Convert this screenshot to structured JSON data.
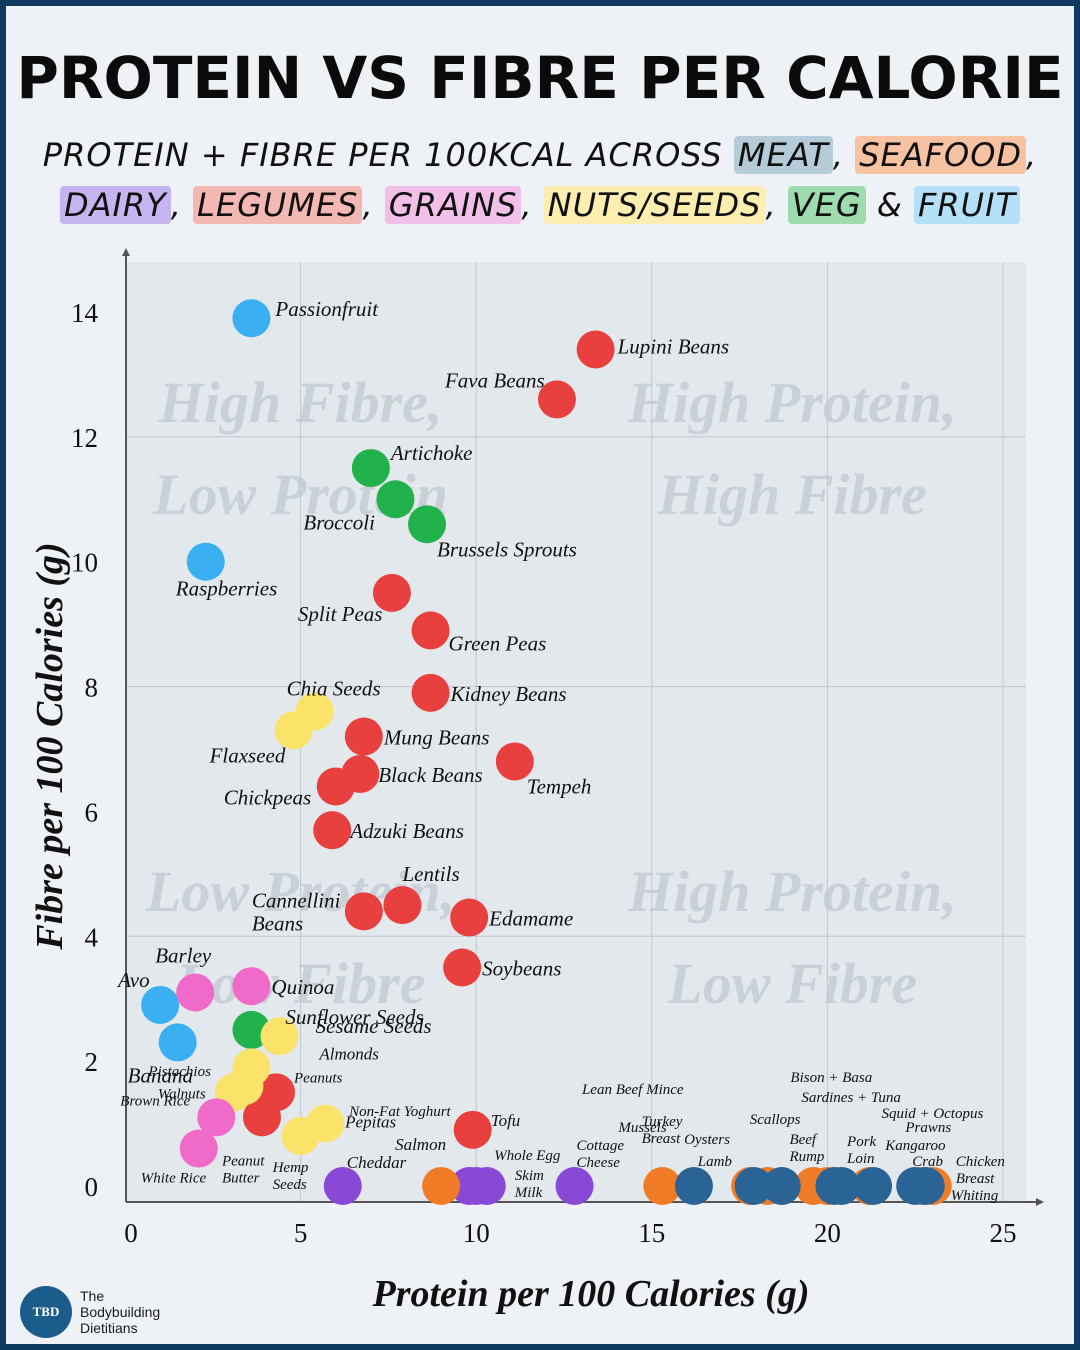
{
  "title": "PROTEIN VS FIBRE PER CALORIE",
  "subtitle": {
    "lead": "PROTEIN + FIBRE PER 100KCAL ACROSS",
    "cat_meat": "MEAT",
    "cat_seafood": "SEAFOOD",
    "cat_dairy": "DAIRY",
    "cat_legumes": "LEGUMES",
    "cat_grains": "GRAINS",
    "cat_nuts": "NUTS/SEEDS",
    "cat_veg": "VEG",
    "cat_fruit": "FRUIT",
    "comma": ",",
    "amp": "&"
  },
  "brand": {
    "logo_text": "TBD",
    "line1": "The",
    "line2": "Bodybuilding",
    "line3": "Dietitians"
  },
  "colors": {
    "meat": "#2a6496",
    "seafood": "#f07c28",
    "dairy": "#8a48d6",
    "legumes": "#e8403e",
    "grains": "#f06aca",
    "nuts": "#fbe36a",
    "veg": "#22b24c",
    "fruit": "#3ab0f2",
    "meat_hl": "#b6cbd8",
    "seafood_hl": "#f6c2a2",
    "dairy_hl": "#c4b4ef",
    "legumes_hl": "#f4b8b4",
    "grains_hl": "#f2bfe9",
    "nuts_hl": "#fbeeb0",
    "veg_hl": "#9edcb0",
    "fruit_hl": "#b4e0f8"
  },
  "chart_data": {
    "type": "scatter",
    "xlabel": "Protein per 100 Calories (g)",
    "ylabel": "Fibre per 100 Calories (g)",
    "xlim": [
      0,
      25
    ],
    "ylim": [
      0,
      14
    ],
    "xticks": [
      0,
      5,
      10,
      15,
      20,
      25
    ],
    "yticks": [
      2,
      4,
      6,
      8,
      10,
      12,
      14
    ],
    "ytick_zero": "0",
    "grid": true,
    "quadrant_labels": {
      "top_left": [
        "High Fibre,",
        "Low Protein"
      ],
      "top_right": [
        "High Protein,",
        "High Fibre"
      ],
      "bottom_left": [
        "Low Protein,",
        "Low Fibre"
      ],
      "bottom_right": [
        "High Protein,",
        "Low Fibre"
      ]
    },
    "points": [
      {
        "label": "Passionfruit",
        "category": "fruit",
        "x": 3.6,
        "y": 13.9
      },
      {
        "label": "Raspberries",
        "category": "fruit",
        "x": 2.3,
        "y": 10.0
      },
      {
        "label": "Avo",
        "category": "fruit",
        "x": 1.0,
        "y": 2.9
      },
      {
        "label": "Banana",
        "category": "fruit",
        "x": 1.5,
        "y": 2.3
      },
      {
        "label": "Lupini Beans",
        "category": "legumes",
        "x": 13.4,
        "y": 13.4
      },
      {
        "label": "Fava Beans",
        "category": "legumes",
        "x": 12.3,
        "y": 12.6
      },
      {
        "label": "Split Peas",
        "category": "legumes",
        "x": 7.6,
        "y": 9.5
      },
      {
        "label": "Green Peas",
        "category": "legumes",
        "x": 8.7,
        "y": 8.9
      },
      {
        "label": "Kidney Beans",
        "category": "legumes",
        "x": 8.7,
        "y": 7.9
      },
      {
        "label": "Mung Beans",
        "category": "legumes",
        "x": 6.8,
        "y": 7.2
      },
      {
        "label": "Tempeh",
        "category": "legumes",
        "x": 11.1,
        "y": 6.8
      },
      {
        "label": "Black Beans",
        "category": "legumes",
        "x": 6.7,
        "y": 6.6
      },
      {
        "label": "Chickpeas",
        "category": "legumes",
        "x": 6.0,
        "y": 6.4
      },
      {
        "label": "Adzuki Beans",
        "category": "legumes",
        "x": 5.9,
        "y": 5.7
      },
      {
        "label": "Cannellini Beans",
        "category": "legumes",
        "x": 6.8,
        "y": 4.4
      },
      {
        "label": "Lentils",
        "category": "legumes",
        "x": 7.9,
        "y": 4.5
      },
      {
        "label": "Edamame",
        "category": "legumes",
        "x": 9.8,
        "y": 4.3
      },
      {
        "label": "Soybeans",
        "category": "legumes",
        "x": 9.6,
        "y": 3.5
      },
      {
        "label": "Tofu",
        "category": "legumes",
        "x": 9.9,
        "y": 0.9
      },
      {
        "label": "Peanuts",
        "category": "legumes",
        "x": 4.3,
        "y": 1.5
      },
      {
        "label": "Peanut Butter",
        "category": "legumes",
        "x": 3.9,
        "y": 1.1
      },
      {
        "label": "Artichoke",
        "category": "veg",
        "x": 7.0,
        "y": 11.5
      },
      {
        "label": "Broccoli",
        "category": "veg",
        "x": 7.7,
        "y": 11.0
      },
      {
        "label": "Brussels Sprouts",
        "category": "veg",
        "x": 8.6,
        "y": 10.6
      },
      {
        "label": "Sunflower Seeds",
        "category": "veg",
        "x": 3.6,
        "y": 2.5
      },
      {
        "label": "Chia Seeds",
        "category": "nuts",
        "x": 5.4,
        "y": 7.6
      },
      {
        "label": "Flaxseed",
        "category": "nuts",
        "x": 4.8,
        "y": 7.3
      },
      {
        "label": "Almonds",
        "category": "nuts",
        "x": 3.6,
        "y": 1.9
      },
      {
        "label": "Sesame Seeds",
        "category": "nuts",
        "x": 4.4,
        "y": 2.4
      },
      {
        "label": "Pistachios",
        "category": "nuts",
        "x": 3.4,
        "y": 1.6
      },
      {
        "label": "Walnuts",
        "category": "nuts",
        "x": 3.1,
        "y": 1.5
      },
      {
        "label": "Pepitas",
        "category": "nuts",
        "x": 5.7,
        "y": 1.0
      },
      {
        "label": "Hemp Seeds",
        "category": "nuts",
        "x": 5.0,
        "y": 0.8
      },
      {
        "label": "Barley",
        "category": "grains",
        "x": 2.0,
        "y": 3.1
      },
      {
        "label": "Quinoa",
        "category": "grains",
        "x": 3.6,
        "y": 3.2
      },
      {
        "label": "Brown Rice",
        "category": "grains",
        "x": 2.6,
        "y": 1.1
      },
      {
        "label": "White Rice",
        "category": "grains",
        "x": 2.1,
        "y": 0.6
      },
      {
        "label": "Cheddar",
        "category": "dairy",
        "x": 6.2,
        "y": 0.0
      },
      {
        "label": "Whole Egg",
        "category": "dairy",
        "x": 10.0,
        "y": 0.0
      },
      {
        "label": "Skim Milk",
        "category": "dairy",
        "x": 10.3,
        "y": 0.0
      },
      {
        "label": "Cottage Cheese",
        "category": "dairy",
        "x": 12.8,
        "y": 0.0
      },
      {
        "label": "Non-Fat Yoghurt",
        "category": "dairy",
        "x": 9.8,
        "y": 0.0
      },
      {
        "label": "Salmon",
        "category": "seafood",
        "x": 9.0,
        "y": 0.0
      },
      {
        "label": "Mussels",
        "category": "seafood",
        "x": 15.3,
        "y": 0.0
      },
      {
        "label": "Oysters",
        "category": "seafood",
        "x": 17.8,
        "y": 0.0
      },
      {
        "label": "Scallops",
        "category": "seafood",
        "x": 18.3,
        "y": 0.0
      },
      {
        "label": "Prawns",
        "category": "seafood",
        "x": 20.0,
        "y": 0.0
      },
      {
        "label": "Squid + Octopus",
        "category": "seafood",
        "x": 21.2,
        "y": 0.0
      },
      {
        "label": "Sardines + Tuna",
        "category": "seafood",
        "x": 19.6,
        "y": 0.0
      },
      {
        "label": "Crab",
        "category": "seafood",
        "x": 22.7,
        "y": 0.0
      },
      {
        "label": "Whiting",
        "category": "seafood",
        "x": 23.0,
        "y": 0.0
      },
      {
        "label": "Lean Beef Mince",
        "category": "meat",
        "x": 16.2,
        "y": 0.0
      },
      {
        "label": "Turkey Breast",
        "category": "meat",
        "x": 17.9,
        "y": 0.0
      },
      {
        "label": "Lamb",
        "category": "meat",
        "x": 18.7,
        "y": 0.0
      },
      {
        "label": "Beef Rump",
        "category": "meat",
        "x": 20.4,
        "y": 0.0
      },
      {
        "label": "Pork Loin",
        "category": "meat",
        "x": 21.3,
        "y": 0.0
      },
      {
        "label": "Bison + Basa",
        "category": "meat",
        "x": 20.2,
        "y": 0.0
      },
      {
        "label": "Kangaroo",
        "category": "meat",
        "x": 22.5,
        "y": 0.0
      },
      {
        "label": "Chicken Breast",
        "category": "meat",
        "x": 22.8,
        "y": 0.0
      }
    ]
  }
}
